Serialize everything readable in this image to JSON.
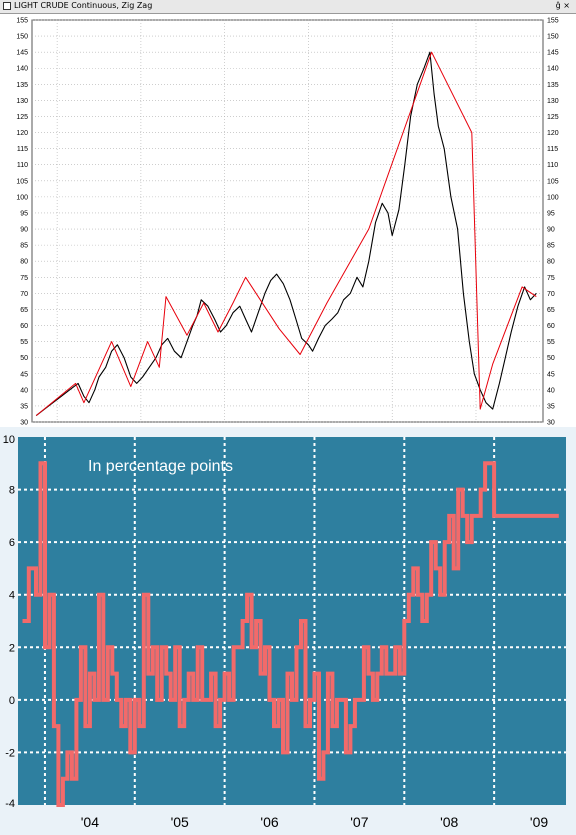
{
  "window": {
    "title": "LIGHT CRUDE Continuous, Zig Zag",
    "buttons": "ĝ ×"
  },
  "chart_data": [
    {
      "type": "line",
      "title": "LIGHT CRUDE Continuous, Zig Zag",
      "ylim": [
        30,
        155
      ],
      "y_ticks": [
        30,
        35,
        40,
        45,
        50,
        55,
        60,
        65,
        70,
        75,
        80,
        85,
        90,
        95,
        100,
        105,
        110,
        115,
        120,
        125,
        130,
        135,
        140,
        145,
        150,
        155
      ],
      "xlim": [
        2003.7,
        2009.8
      ],
      "grid": true,
      "background": "#ffffff",
      "series": [
        {
          "role": "price",
          "color": "#000000",
          "x": [
            2003.75,
            2003.85,
            2003.95,
            2004.05,
            2004.15,
            2004.25,
            2004.32,
            2004.38,
            2004.45,
            2004.5,
            2004.58,
            2004.65,
            2004.72,
            2004.8,
            2004.88,
            2004.95,
            2005.02,
            2005.1,
            2005.18,
            2005.25,
            2005.32,
            2005.4,
            2005.48,
            2005.55,
            2005.62,
            2005.67,
            2005.72,
            2005.8,
            2005.88,
            2005.95,
            2006.02,
            2006.1,
            2006.18,
            2006.25,
            2006.32,
            2006.4,
            2006.48,
            2006.55,
            2006.62,
            2006.7,
            2006.78,
            2006.85,
            2006.92,
            2007.0,
            2007.05,
            2007.12,
            2007.2,
            2007.28,
            2007.35,
            2007.42,
            2007.5,
            2007.58,
            2007.65,
            2007.72,
            2007.8,
            2007.88,
            2007.95,
            2008.0,
            2008.08,
            2008.15,
            2008.22,
            2008.3,
            2008.38,
            2008.45,
            2008.5,
            2008.55,
            2008.62,
            2008.7,
            2008.78,
            2008.85,
            2008.92,
            2008.98,
            2009.05,
            2009.12,
            2009.2,
            2009.28,
            2009.35,
            2009.42,
            2009.5,
            2009.58,
            2009.65,
            2009.72
          ],
          "values": [
            32,
            34,
            36,
            38,
            40,
            42,
            38,
            36,
            40,
            44,
            47,
            52,
            54,
            50,
            44,
            42,
            44,
            47,
            50,
            54,
            56,
            52,
            50,
            55,
            60,
            63,
            68,
            66,
            62,
            58,
            60,
            64,
            66,
            62,
            58,
            64,
            70,
            74,
            76,
            73,
            68,
            62,
            56,
            54,
            52,
            56,
            60,
            62,
            64,
            68,
            70,
            75,
            72,
            80,
            92,
            98,
            95,
            88,
            96,
            110,
            125,
            135,
            140,
            145,
            132,
            122,
            115,
            100,
            90,
            70,
            55,
            45,
            40,
            36,
            34,
            42,
            50,
            58,
            66,
            72,
            68,
            70
          ]
        },
        {
          "role": "zigzag",
          "color": "#e8000b",
          "x": [
            2003.75,
            2004.22,
            2004.32,
            2004.65,
            2004.88,
            2005.08,
            2005.22,
            2005.3,
            2005.55,
            2005.75,
            2005.92,
            2006.1,
            2006.25,
            2006.65,
            2006.9,
            2007.22,
            2007.72,
            2008.47,
            2008.95,
            2009.05,
            2009.2,
            2009.55,
            2009.72
          ],
          "values": [
            32,
            42,
            36,
            55,
            41,
            55,
            47,
            69,
            57,
            67,
            58,
            67,
            75,
            59,
            51,
            67,
            90,
            145,
            120,
            34,
            48,
            72,
            69
          ]
        }
      ]
    },
    {
      "type": "line",
      "title": "In percentage points",
      "categories": [
        "'04",
        "'05",
        "'06",
        "'07",
        "'08",
        "'09"
      ],
      "ylim": [
        -4,
        10
      ],
      "y_ticks": [
        -4,
        -2,
        0,
        2,
        4,
        6,
        8,
        10
      ],
      "xlim": [
        2003.7,
        2009.8
      ],
      "grid": true,
      "background": "#2e7f9f",
      "series": [
        {
          "color": "#f26a6a",
          "x": [
            2003.75,
            2003.82,
            2003.9,
            2003.95,
            2004.0,
            2004.05,
            2004.1,
            2004.15,
            2004.2,
            2004.25,
            2004.3,
            2004.35,
            2004.4,
            2004.45,
            2004.5,
            2004.55,
            2004.6,
            2004.65,
            2004.7,
            2004.75,
            2004.8,
            2004.85,
            2004.9,
            2004.95,
            2005.0,
            2005.05,
            2005.1,
            2005.15,
            2005.2,
            2005.25,
            2005.3,
            2005.35,
            2005.4,
            2005.45,
            2005.5,
            2005.55,
            2005.6,
            2005.65,
            2005.7,
            2005.75,
            2005.8,
            2005.85,
            2005.9,
            2005.95,
            2006.0,
            2006.05,
            2006.1,
            2006.15,
            2006.2,
            2006.25,
            2006.3,
            2006.35,
            2006.4,
            2006.45,
            2006.5,
            2006.55,
            2006.6,
            2006.65,
            2006.7,
            2006.75,
            2006.8,
            2006.85,
            2006.9,
            2006.95,
            2007.0,
            2007.05,
            2007.1,
            2007.15,
            2007.2,
            2007.25,
            2007.3,
            2007.35,
            2007.4,
            2007.45,
            2007.5,
            2007.55,
            2007.6,
            2007.65,
            2007.7,
            2007.75,
            2007.8,
            2007.85,
            2007.9,
            2007.95,
            2008.0,
            2008.05,
            2008.1,
            2008.15,
            2008.2,
            2008.25,
            2008.3,
            2008.35,
            2008.4,
            2008.45,
            2008.5,
            2008.55,
            2008.6,
            2008.65,
            2008.7,
            2008.75,
            2008.8,
            2008.85,
            2008.9,
            2008.95,
            2009.0,
            2009.05,
            2009.1,
            2009.15,
            2009.2,
            2009.25,
            2009.3,
            2009.35,
            2009.4,
            2009.45,
            2009.5,
            2009.55,
            2009.6,
            2009.65,
            2009.7,
            2009.72
          ],
          "values": [
            3,
            5,
            4,
            9,
            2,
            4,
            -1,
            -4,
            -3,
            -2,
            -3,
            0,
            2,
            -1,
            1,
            0,
            4,
            0,
            2,
            1,
            0,
            -1,
            0,
            -2,
            0,
            -1,
            4,
            1,
            2,
            0,
            2,
            1,
            0,
            2,
            -1,
            0,
            1,
            0,
            2,
            0,
            0,
            1,
            -1,
            0,
            1,
            0,
            2,
            2,
            3,
            4,
            2,
            3,
            1,
            2,
            0,
            -1,
            0,
            -2,
            1,
            0,
            2,
            3,
            -1,
            0,
            1,
            -3,
            -2,
            1,
            -1,
            0,
            0,
            -2,
            -1,
            0,
            0,
            2,
            1,
            0,
            1,
            2,
            1,
            1,
            2,
            1,
            3,
            4,
            5,
            4,
            3,
            4,
            6,
            5,
            4,
            6,
            7,
            5,
            8,
            7,
            6,
            7,
            7,
            8,
            9,
            9,
            7,
            7,
            7,
            7,
            7,
            7,
            7,
            7,
            7,
            7,
            7,
            7,
            7,
            7,
            7,
            7
          ]
        }
      ]
    }
  ]
}
